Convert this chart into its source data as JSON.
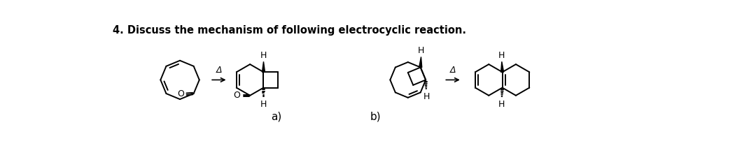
{
  "title": "4. Discuss the mechanism of following electrocyclic reaction.",
  "bg_color": "#ffffff",
  "line_color": "#000000",
  "lw": 1.4,
  "label_a": "a)",
  "label_b": "b)"
}
